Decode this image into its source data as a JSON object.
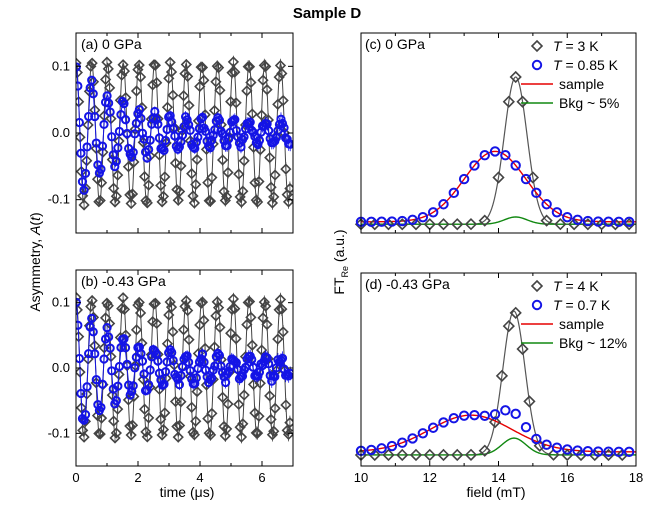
{
  "figure_title": "Sample D",
  "colors": {
    "black_series": "#444444",
    "blue_series": "#1414e6",
    "sample_line": "#e60000",
    "bkg_line": "#118811"
  },
  "left_ylabel": "Asymmetry, A(t)",
  "left_xlabel": "time (μs)",
  "right_ylabel": "FT Re (a.u.)",
  "right_xlabel": "field (mT)",
  "chart_data": [
    {
      "id": "a",
      "type": "scatter",
      "panel_label": "(a) 0 GPa",
      "xlim": [
        0,
        7
      ],
      "ylim": [
        -0.15,
        0.15
      ],
      "yticks": [
        "0.1",
        "0.0",
        "-0.1"
      ],
      "ytick_values": [
        0.1,
        0.0,
        -0.1
      ],
      "xticks": [],
      "series": [
        {
          "marker": "diamond",
          "color": "#444444",
          "model": {
            "amp0": 0.105,
            "amp_end": 0.095,
            "freq": 1.97,
            "phase": 0,
            "decay": 0.02,
            "noise": 0.004
          },
          "x_range": [
            0,
            6.9
          ],
          "points": 160,
          "fit_line": true
        },
        {
          "marker": "circle",
          "color": "#1414e6",
          "model": {
            "amp0": 0.1,
            "amp_end": 0.015,
            "freq": 1.97,
            "phase": 0,
            "decay": 0.7,
            "noise": 0.006
          },
          "x_range": [
            0,
            6.9
          ],
          "points": 140,
          "fit_line": true
        }
      ]
    },
    {
      "id": "b",
      "type": "scatter",
      "panel_label": "(b) -0.43 GPa",
      "xlim": [
        0,
        7
      ],
      "ylim": [
        -0.15,
        0.15
      ],
      "yticks": [
        "0.1",
        "0.0",
        "-0.1"
      ],
      "ytick_values": [
        0.1,
        0.0,
        -0.1
      ],
      "xticks": [
        "0",
        "2",
        "4",
        "6"
      ],
      "xtick_values": [
        0,
        2,
        4,
        6
      ],
      "series": [
        {
          "marker": "diamond",
          "color": "#444444",
          "model": {
            "amp0": 0.105,
            "amp_end": 0.095,
            "freq": 1.97,
            "phase": 0,
            "decay": 0.02,
            "noise": 0.004
          },
          "x_range": [
            0,
            6.9
          ],
          "points": 160,
          "fit_line": true
        },
        {
          "marker": "circle",
          "color": "#1414e6",
          "model": {
            "amp0": 0.1,
            "amp_end": 0.015,
            "freq": 1.97,
            "phase": 0,
            "decay": 0.7,
            "noise": 0.006
          },
          "x_range": [
            0,
            6.9
          ],
          "points": 140,
          "fit_line": true
        }
      ]
    },
    {
      "id": "c",
      "type": "line",
      "panel_label": "(c) 0 GPa",
      "xlim": [
        10,
        18
      ],
      "ylim": [
        0,
        1.0
      ],
      "xticks": [],
      "legend_position": "top-right",
      "legend": [
        {
          "kind": "diamond",
          "var": "T",
          "rest": " = 3 K"
        },
        {
          "kind": "circle",
          "var": "T",
          "rest": " = 0.85 K"
        },
        {
          "kind": "line",
          "color": "#e60000",
          "label": "sample"
        },
        {
          "kind": "line",
          "color": "#118811",
          "label": "Bkg ~ 5%"
        }
      ],
      "black_peak": {
        "center": 14.5,
        "sigma": 0.33,
        "amp": 0.92,
        "base": 0.005
      },
      "sample_peak": {
        "center": 13.9,
        "sigma": 0.9,
        "amp": 0.44,
        "base": 0.02
      },
      "bkg_peak": {
        "center": 14.5,
        "sigma": 0.33,
        "amp": 0.045,
        "base": 0.005
      },
      "black_x": [
        10.0,
        10.4,
        10.8,
        11.2,
        11.6,
        12.0,
        12.4,
        12.8,
        13.2,
        13.6,
        14.0,
        14.3,
        14.5,
        14.7,
        15.0,
        15.4,
        15.8,
        16.2,
        16.6,
        17.0,
        17.4,
        17.8
      ],
      "blue_x": [
        10.0,
        10.3,
        10.6,
        10.9,
        11.2,
        11.5,
        11.8,
        12.1,
        12.4,
        12.7,
        13.0,
        13.3,
        13.6,
        13.9,
        14.2,
        14.5,
        14.8,
        15.1,
        15.4,
        15.7,
        16.0,
        16.3,
        16.6,
        16.9,
        17.2,
        17.5,
        17.8
      ]
    },
    {
      "id": "d",
      "type": "line",
      "panel_label": "(d) -0.43 GPa",
      "xlim": [
        10,
        18
      ],
      "ylim": [
        0,
        1.0
      ],
      "xticks": [
        "10",
        "12",
        "14",
        "16",
        "18"
      ],
      "xtick_values": [
        10,
        12,
        14,
        16,
        18
      ],
      "legend_position": "top-right",
      "legend": [
        {
          "kind": "diamond",
          "var": "T",
          "rest": " = 4 K"
        },
        {
          "kind": "circle",
          "var": "T",
          "rest": " = 0.7 K"
        },
        {
          "kind": "line",
          "color": "#e60000",
          "label": "sample"
        },
        {
          "kind": "line",
          "color": "#118811",
          "label": "Bkg ~ 12%"
        }
      ],
      "black_peak": {
        "center": 14.45,
        "sigma": 0.32,
        "amp": 0.94,
        "base": 0.02
      },
      "sample_peak": {
        "center": 13.2,
        "sigma": 1.2,
        "amp": 0.24,
        "base": 0.04
      },
      "bkg_peak": {
        "center": 14.45,
        "sigma": 0.35,
        "amp": 0.11,
        "base": 0.02
      },
      "blue_bump": {
        "center": 14.4,
        "sigma": 0.35,
        "amp": 0.12
      },
      "black_x": [
        10.0,
        10.4,
        10.8,
        11.2,
        11.6,
        12.0,
        12.4,
        12.8,
        13.2,
        13.6,
        13.9,
        14.1,
        14.3,
        14.5,
        14.7,
        14.9,
        15.2,
        15.6,
        16.0,
        16.4,
        16.8,
        17.2,
        17.6
      ],
      "blue_x": [
        10.0,
        10.3,
        10.6,
        10.9,
        11.2,
        11.5,
        11.8,
        12.1,
        12.4,
        12.7,
        13.0,
        13.3,
        13.6,
        13.9,
        14.2,
        14.5,
        14.8,
        15.1,
        15.4,
        15.7,
        16.0,
        16.3,
        16.6,
        16.9,
        17.2,
        17.5,
        17.8
      ]
    }
  ]
}
